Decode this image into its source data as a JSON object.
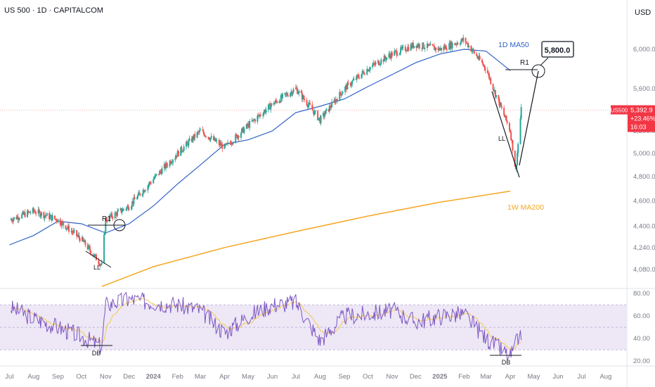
{
  "header": {
    "symbol_line": "US 500 · 1D · CAPITALCOM",
    "currency": "USD"
  },
  "price_tag": {
    "symbol": "US500",
    "price": "5,392.9",
    "change": "+23.46%",
    "countdown": "16:03",
    "color": "#f23645"
  },
  "colors": {
    "ma50": "#2f62c7",
    "ma200w": "#f5a623",
    "rsi_line": "#7e57c2",
    "rsi_band": "#ede7f6",
    "rsi_signal": "#f2c94c",
    "bull": "#26a69a",
    "bear": "#ef5350"
  },
  "annotations": {
    "ma50_label": "1D MA50",
    "ma200_label": "1W MA200",
    "target": "5,800.0",
    "r1_left": "R1",
    "r1_right": "R1",
    "ll_left": "LL",
    "ll_right": "LL",
    "db_left": "DB",
    "db_right": "DB"
  },
  "chart_data": [
    {
      "type": "line",
      "title": "US 500 · 1D · CAPITALCOM",
      "yunit": "USD",
      "yscale": "log",
      "ylim": [
        3950,
        6350
      ],
      "yticks": [
        "6,000.0",
        "5,600.0",
        "5,200.0",
        "5,000.0",
        "4,800.0",
        "4,600.0",
        "4,400.0",
        "4,240.0",
        "4,080.0"
      ],
      "xticks": [
        "Jul",
        "Aug",
        "Sep",
        "Oct",
        "Nov",
        "Dec",
        "2024",
        "Feb",
        "Mar",
        "Apr",
        "May",
        "Jun",
        "Jul",
        "Aug",
        "Sep",
        "Oct",
        "Nov",
        "Dec",
        "2025",
        "Feb",
        "Mar",
        "Apr",
        "May",
        "Jun",
        "Jul",
        "Aug"
      ],
      "series": [
        {
          "name": "US500",
          "style": "candles",
          "x": [
            "2023-07",
            "2023-08",
            "2023-09",
            "2023-10",
            "2023-10-27",
            "2023-11",
            "2023-12",
            "2024-01",
            "2024-02",
            "2024-03",
            "2024-04",
            "2024-05",
            "2024-06",
            "2024-07",
            "2024-08",
            "2024-09",
            "2024-10",
            "2024-11",
            "2024-12",
            "2025-01",
            "2025-02",
            "2025-03",
            "2025-03-13",
            "2025-04",
            "2025-04-08",
            "2025-04-15"
          ],
          "y": [
            4450,
            4520,
            4450,
            4300,
            4110,
            4450,
            4560,
            4780,
            5000,
            5200,
            5050,
            5250,
            5450,
            5600,
            5300,
            5600,
            5800,
            5950,
            6050,
            6000,
            6100,
            5800,
            5550,
            5200,
            4850,
            5392.9
          ]
        },
        {
          "name": "1D MA50",
          "x": [
            "2023-07",
            "2023-08",
            "2023-09",
            "2023-10",
            "2023-11",
            "2023-12",
            "2024-01",
            "2024-02",
            "2024-03",
            "2024-04",
            "2024-05",
            "2024-06",
            "2024-07",
            "2024-08",
            "2024-09",
            "2024-10",
            "2024-11",
            "2024-12",
            "2025-01",
            "2025-02",
            "2025-03",
            "2025-04"
          ],
          "y": [
            4260,
            4330,
            4440,
            4420,
            4350,
            4420,
            4560,
            4740,
            4900,
            5080,
            5120,
            5200,
            5370,
            5430,
            5500,
            5620,
            5740,
            5860,
            5950,
            6000,
            5980,
            5780
          ]
        },
        {
          "name": "1W MA200",
          "x": [
            "2023-10-27",
            "2024-01",
            "2024-04",
            "2024-07",
            "2024-10",
            "2025-01",
            "2025-04"
          ],
          "y": [
            3960,
            4100,
            4240,
            4360,
            4480,
            4590,
            4680
          ]
        }
      ]
    },
    {
      "type": "line",
      "title": "",
      "ylim": [
        15,
        85
      ],
      "yticks": [
        "80.00",
        "60.00",
        "40.00",
        "20.00"
      ],
      "band": [
        30,
        70
      ],
      "series": [
        {
          "name": "",
          "x": [
            "2023-07",
            "2023-08",
            "2023-09",
            "2023-10",
            "2023-10-27",
            "2023-11",
            "2023-12",
            "2024-01",
            "2024-02",
            "2024-03",
            "2024-04",
            "2024-05",
            "2024-06",
            "2024-07",
            "2024-08",
            "2024-09",
            "2024-10",
            "2024-11",
            "2024-12",
            "2025-01",
            "2025-02",
            "2025-03",
            "2025-04",
            "2025-04-15"
          ],
          "y": [
            68,
            58,
            50,
            42,
            33,
            70,
            75,
            72,
            70,
            65,
            45,
            60,
            70,
            72,
            38,
            60,
            62,
            65,
            55,
            60,
            62,
            40,
            24,
            46
          ]
        }
      ]
    }
  ]
}
